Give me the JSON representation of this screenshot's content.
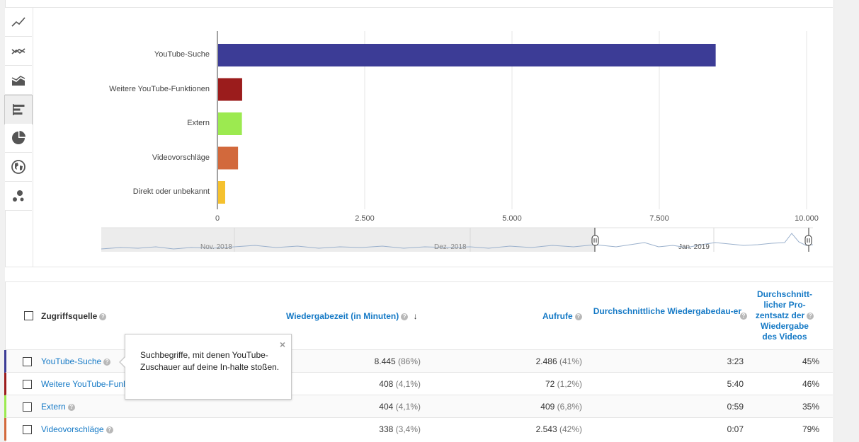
{
  "toolbar": {
    "buttons": [
      {
        "icon": "line-chart-icon"
      },
      {
        "icon": "multi-line-chart-icon"
      },
      {
        "icon": "area-chart-icon"
      },
      {
        "icon": "bar-chart-icon",
        "active": true
      },
      {
        "icon": "pie-chart-icon"
      },
      {
        "icon": "globe-map-icon"
      },
      {
        "icon": "bubble-chart-icon"
      }
    ]
  },
  "chart_data": {
    "type": "bar",
    "orientation": "horizontal",
    "categories": [
      "YouTube-Suche",
      "Weitere YouTube-Funktionen",
      "Extern",
      "Videovorschläge",
      "Direkt oder unbekannt"
    ],
    "values": [
      8445,
      408,
      404,
      338,
      120
    ],
    "colors": [
      "#3c3c96",
      "#9b1c1c",
      "#9cea50",
      "#d2693c",
      "#f5c12e"
    ],
    "xlim": [
      0,
      10000
    ],
    "x_ticks": [
      "0",
      "2.500",
      "5.000",
      "7.500",
      "10.000"
    ],
    "x_tick_values": [
      0,
      2500,
      5000,
      7500,
      10000
    ],
    "grid": true
  },
  "timeline": {
    "labels": [
      "Nov. 2018",
      "Dez. 2018",
      "Jan. 2019"
    ]
  },
  "table": {
    "header": {
      "source": "Zugriffsquelle",
      "watchtime": "Wiedergabezeit (in Minuten)",
      "views": "Aufrufe",
      "avg_duration": "Durchschnittliche Wiedergabedau-er",
      "avg_pct_lines": [
        "Durchschnitt-",
        "licher Pro-",
        "zentsatz der",
        "Wiedergabe",
        "des Videos"
      ]
    },
    "rows": [
      {
        "name": "YouTube-Suche",
        "watchtime": "8.445",
        "watchtime_pct": "(86%)",
        "views": "2.486",
        "views_pct": "(41%)",
        "duration": "3:23",
        "percent": "45%",
        "color": "#3c3c96"
      },
      {
        "name": "Weitere YouTube-Funktionen",
        "watchtime": "408",
        "watchtime_pct": "(4,1%)",
        "views": "72",
        "views_pct": "(1,2%)",
        "duration": "5:40",
        "percent": "46%",
        "color": "#9b1c1c"
      },
      {
        "name": "Extern",
        "watchtime": "404",
        "watchtime_pct": "(4,1%)",
        "views": "409",
        "views_pct": "(6,8%)",
        "duration": "0:59",
        "percent": "35%",
        "color": "#9cea50"
      },
      {
        "name": "Videovorschläge",
        "watchtime": "338",
        "watchtime_pct": "(3,4%)",
        "views": "2.543",
        "views_pct": "(42%)",
        "duration": "0:07",
        "percent": "79%",
        "color": "#d2693c"
      }
    ]
  },
  "tooltip": {
    "text": "Suchbegriffe, mit denen YouTube-Zuschauer auf deine In-halte stoßen.",
    "close": "×"
  }
}
